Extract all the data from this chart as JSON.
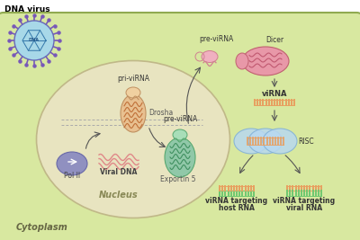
{
  "bg_color": "#d8e8a0",
  "cytoplasm_label": "Cytoplasm",
  "nucleus_label": "Nucleus",
  "dna_virus_label": "DNA virus",
  "nucleus_color": "#e8e4c0",
  "nucleus_edge_color": "#c0b888",
  "cell_edge_color": "#90aa50",
  "virus_fill_color": "#a8d8e8",
  "virus_border_color": "#6868b8",
  "virus_spike_color": "#7858b8",
  "drosha_color": "#e8c090",
  "exportin_color": "#90c8a8",
  "dicer_color": "#e898a8",
  "pol2_color": "#9090c0",
  "viral_dna_color": "#e08888",
  "risc_color": "#b8d8f0",
  "viRNA_orange": "#e8a060",
  "viRNA_green": "#70c870",
  "label_fontsize": 6.5,
  "small_fontsize": 5.5,
  "bold_fontsize": 6.0
}
